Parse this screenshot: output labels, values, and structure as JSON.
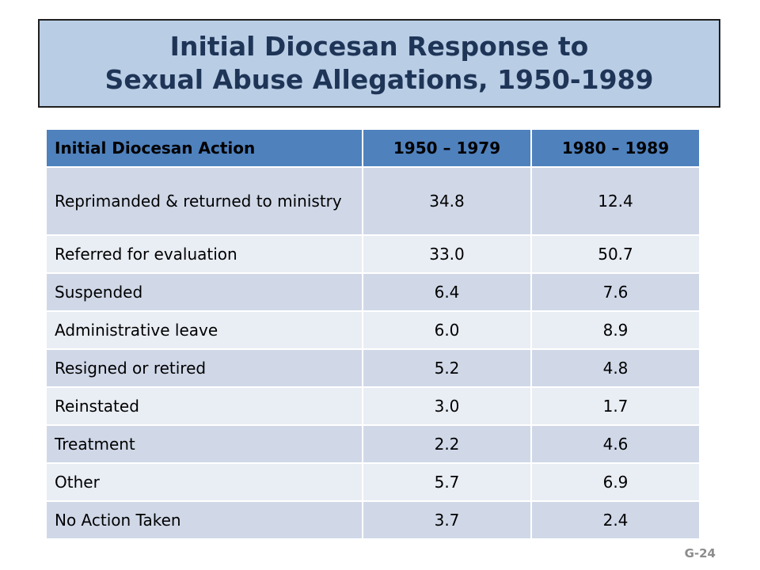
{
  "title": {
    "line1": "Initial Diocesan Response to",
    "line2": "Sexual Abuse Allegations, 1950-1989"
  },
  "table": {
    "headers": [
      "Initial Diocesan Action",
      "1950 – 1979",
      "1980 – 1989"
    ],
    "rows": [
      {
        "action": "Reprimanded & returned to ministry",
        "p1": "34.8",
        "p2": "12.4"
      },
      {
        "action": "Referred for evaluation",
        "p1": "33.0",
        "p2": "50.7"
      },
      {
        "action": "Suspended",
        "p1": "6.4",
        "p2": "7.6"
      },
      {
        "action": "Administrative leave",
        "p1": "6.0",
        "p2": "8.9"
      },
      {
        "action": "Resigned or retired",
        "p1": "5.2",
        "p2": "4.8"
      },
      {
        "action": "Reinstated",
        "p1": "3.0",
        "p2": "1.7"
      },
      {
        "action": "Treatment",
        "p1": "2.2",
        "p2": "4.6"
      },
      {
        "action": "Other",
        "p1": "5.7",
        "p2": "6.9"
      },
      {
        "action": "No Action Taken",
        "p1": "3.7",
        "p2": "2.4"
      }
    ]
  },
  "slide_number": "G-24",
  "colors": {
    "title_bg": "#b9cde5",
    "title_text": "#1f3557",
    "header_bg": "#4f81bd",
    "row_dark": "#d0d8e8",
    "row_light": "#e9edf4"
  }
}
